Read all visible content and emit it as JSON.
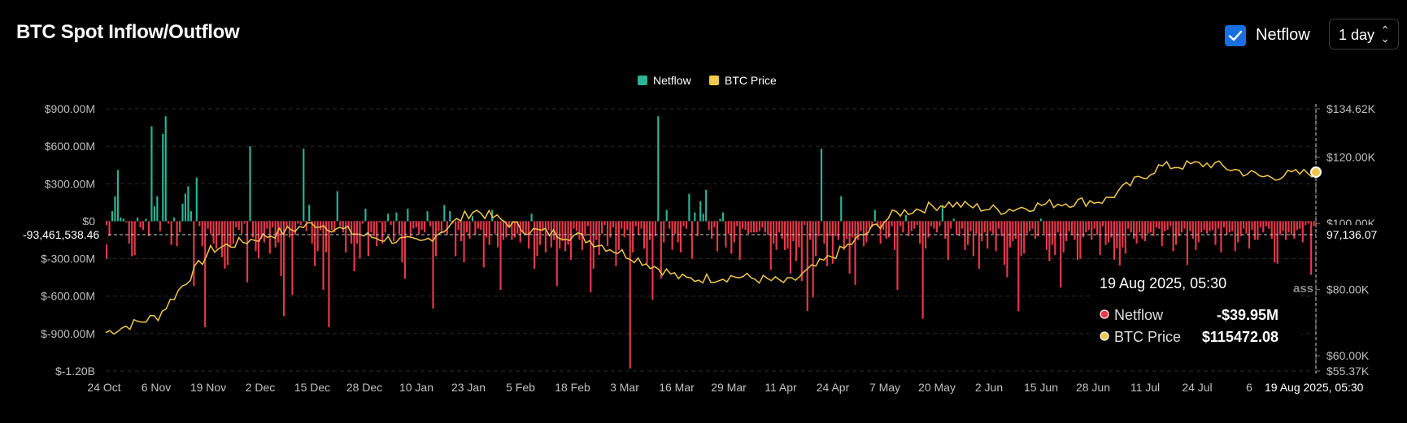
{
  "header": {
    "title": "BTC Spot Inflow/Outflow",
    "netflow_checkbox_label": "Netflow",
    "interval_select_value": "1 day"
  },
  "colors": {
    "positive": "#2bb596",
    "negative": "#e8394a",
    "price": "#f1c84b",
    "grid": "#2a2a2a",
    "axis_text": "#bfbfbf"
  },
  "crosshair": {
    "left_value": "-93,461,538.46",
    "right_value": "97,136.07",
    "bottom_date": "19 Aug 2025, 05:30"
  },
  "tooltip": {
    "date": "19 Aug 2025, 05:30",
    "rows": [
      {
        "label": "Netflow",
        "value": "-$39.95M",
        "color": "#e8394a"
      },
      {
        "label": "BTC Price",
        "value": "$115472.08",
        "color": "#f1c84b"
      }
    ]
  },
  "watermark_fragment": "ass",
  "chart_data": {
    "type": "bar",
    "title": "BTC Spot Inflow/Outflow",
    "legend": [
      "Netflow",
      "BTC Price"
    ],
    "legend_position": "top-center",
    "grid": true,
    "x_tick_labels": [
      "24 Oct",
      "6 Nov",
      "19 Nov",
      "2 Dec",
      "15 Dec",
      "28 Dec",
      "10 Jan",
      "23 Jan",
      "5 Feb",
      "18 Feb",
      "3 Mar",
      "16 Mar",
      "29 Mar",
      "11 Apr",
      "24 Apr",
      "7 May",
      "20 May",
      "2 Jun",
      "15 Jun",
      "28 Jun",
      "11 Jul",
      "24 Jul",
      "6"
    ],
    "y_left_ticks": [
      "$900.00M",
      "$600.00M",
      "$300.00M",
      "$0",
      "$-300.00M",
      "$-600.00M",
      "$-900.00M",
      "$-1.20B"
    ],
    "y_left_range": [
      -1200,
      900
    ],
    "y_left_unit": "M USD",
    "y_right_ticks": [
      "$134.62K",
      "$120.00K",
      "$100.00K",
      "$80.00K",
      "$60.00K",
      "$55.37K"
    ],
    "y_right_range": [
      55370,
      134620
    ],
    "series": [
      {
        "name": "Netflow",
        "type": "bar",
        "values": [
          -300,
          -120,
          80,
          200,
          410,
          30,
          20,
          -10,
          -180,
          -280,
          -270,
          30,
          -50,
          -70,
          20,
          -120,
          760,
          120,
          200,
          -80,
          700,
          840,
          -20,
          -190,
          30,
          -200,
          -90,
          140,
          220,
          280,
          80,
          -520,
          350,
          -40,
          -200,
          -850,
          -60,
          -100,
          -180,
          -220,
          -110,
          -290,
          -380,
          -350,
          -200,
          -180,
          -50,
          -70,
          -100,
          -20,
          -490,
          600,
          -130,
          -240,
          -300,
          -140,
          -170,
          -60,
          -260,
          -50,
          -210,
          -170,
          -440,
          -760,
          -40,
          -130,
          -590,
          -110,
          -20,
          -30,
          580,
          -80,
          130,
          -180,
          -360,
          -240,
          -70,
          -550,
          -250,
          -850,
          -70,
          -90,
          240,
          -40,
          -90,
          -250,
          -60,
          -180,
          -400,
          -180,
          -300,
          -20,
          100,
          -280,
          -90,
          -120,
          -200,
          -10,
          -180,
          -90,
          60,
          -30,
          -160,
          70,
          -100,
          -330,
          -460,
          100,
          -120,
          -60,
          -50,
          -110,
          -70,
          -90,
          80,
          -40,
          -700,
          -280,
          -80,
          -90,
          130,
          -110,
          80,
          -20,
          -280,
          -70,
          -160,
          -330,
          -90,
          -140,
          40,
          -110,
          -60,
          -70,
          -370,
          -130,
          -190,
          90,
          -100,
          -210,
          -550,
          -150,
          -130,
          -40,
          -150,
          -130,
          -100,
          -170,
          -90,
          -100,
          -220,
          60,
          -380,
          -280,
          -190,
          -80,
          -250,
          -70,
          -210,
          -150,
          -520,
          -220,
          -160,
          -240,
          -190,
          -310,
          -60,
          -80,
          -150,
          -230,
          -120,
          -40,
          -570,
          -380,
          -150,
          -270,
          -100,
          -30,
          -200,
          -130,
          -50,
          -360,
          -230,
          -60,
          -130,
          -70,
          -1180,
          -250,
          -40,
          -110,
          -60,
          -220,
          -340,
          -150,
          -630,
          -120,
          840,
          -460,
          -170,
          90,
          -60,
          -230,
          -100,
          -170,
          -250,
          -40,
          -60,
          220,
          -300,
          70,
          -120,
          160,
          60,
          250,
          -70,
          -140,
          -50,
          -240,
          20,
          70,
          -210,
          -100,
          -260,
          -170,
          -40,
          -310,
          -60,
          -70,
          -100,
          -90,
          -90,
          -90,
          -80,
          -50,
          -90,
          -110,
          -390,
          -180,
          -230,
          -90,
          -140,
          -230,
          -220,
          -420,
          -160,
          -320,
          -210,
          -480,
          -30,
          -720,
          -150,
          -610,
          -280,
          -120,
          580,
          -180,
          -360,
          -120,
          -340,
          -120,
          -150,
          200,
          -230,
          -140,
          -420,
          -130,
          -510,
          -150,
          -80,
          -200,
          -170,
          -60,
          -50,
          90,
          -40,
          -180,
          -70,
          -140,
          -130,
          -40,
          -230,
          -550,
          -40,
          -90,
          50,
          -120,
          -80,
          -60,
          -30,
          -180,
          -780,
          -220,
          -130,
          -40,
          -60,
          -90,
          -40,
          130,
          -140,
          -310,
          -60,
          20,
          -110,
          -120,
          -60,
          -230,
          -190,
          -80,
          -280,
          -100,
          -380,
          -160,
          -90,
          -220,
          -80,
          -100,
          -240,
          -60,
          -120,
          -350,
          -450,
          -210,
          -160,
          -140,
          -720,
          -280,
          -260,
          -100,
          -80,
          -60,
          -140,
          -120,
          20,
          -100,
          -230,
          -320,
          -190,
          -270,
          -90,
          -530,
          -250,
          -160,
          -80,
          -110,
          -150,
          -310,
          -300,
          -130,
          -90,
          -70,
          -150,
          -60,
          -110,
          -270,
          -40,
          -190,
          -170,
          -130,
          -310,
          -220,
          -400,
          -210,
          -260,
          -60,
          -90,
          -140,
          -180,
          -90,
          -140,
          -160,
          -100,
          -90,
          -120,
          -50,
          -60,
          -200,
          -80,
          -70,
          -40,
          -240,
          -190,
          -120,
          -90,
          -60,
          -350,
          -80,
          -140,
          -230,
          -170,
          -90,
          -70,
          -100,
          -80,
          -70,
          -190,
          -60,
          -250,
          -50,
          -110,
          -90,
          -80,
          -240,
          -170,
          -120,
          -60,
          -100,
          -220,
          -70,
          -150,
          -150,
          -50,
          -90,
          -40,
          -60,
          -140,
          -330,
          -340,
          -110,
          -80,
          -150,
          -90,
          -110,
          -140,
          -70,
          -60,
          -170,
          -30,
          -20,
          -430,
          -40
        ]
      },
      {
        "name": "BTC Price",
        "type": "line",
        "axis": "right",
        "x": [
          "24 Oct",
          "6 Nov",
          "19 Nov",
          "2 Dec",
          "15 Dec",
          "28 Dec",
          "10 Jan",
          "23 Jan",
          "5 Feb",
          "18 Feb",
          "3 Mar",
          "16 Mar",
          "29 Mar",
          "11 Apr",
          "24 Apr",
          "7 May",
          "20 May",
          "2 Jun",
          "15 Jun",
          "28 Jun",
          "11 Jul",
          "24 Jul",
          "6 Aug",
          "19 Aug"
        ],
        "values": [
          67000,
          72000,
          92000,
          96000,
          100000,
          96000,
          94000,
          104000,
          98000,
          96000,
          90000,
          83000,
          84000,
          82000,
          92000,
          103000,
          106000,
          104000,
          106000,
          107000,
          117000,
          118000,
          114000,
          115472
        ]
      }
    ]
  }
}
